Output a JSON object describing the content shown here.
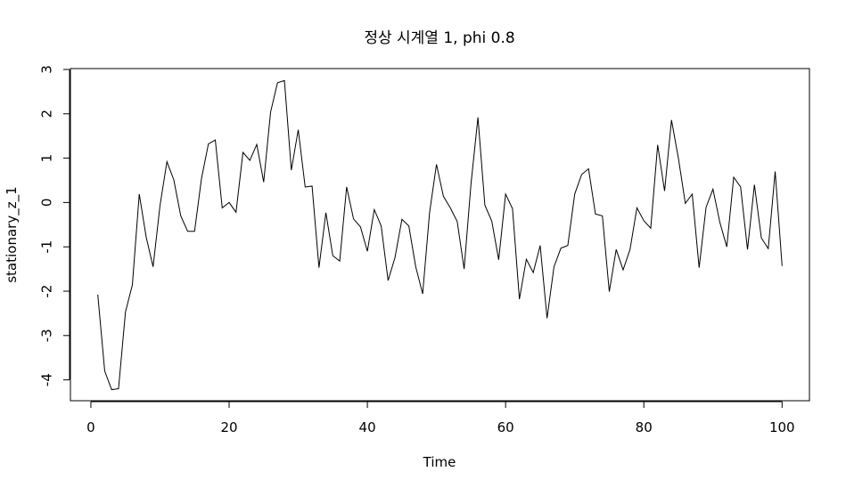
{
  "chart_data": {
    "type": "line",
    "title": "정상 시계열 1, phi 0.8",
    "xlabel": "Time",
    "ylabel": "stationary_z_1",
    "xlim": [
      -2.96,
      103.96
    ],
    "ylim": [
      -4.47,
      3.02
    ],
    "x_ticks": [
      0,
      20,
      40,
      60,
      80,
      100
    ],
    "y_ticks": [
      -4,
      -3,
      -2,
      -1,
      0,
      1,
      2,
      3
    ],
    "grid": false,
    "series": [
      {
        "x": [
          1,
          2,
          3,
          4,
          5,
          6,
          7,
          8,
          9,
          10,
          11,
          12,
          13,
          14,
          15,
          16,
          17,
          18,
          19,
          20,
          21,
          22,
          23,
          24,
          25,
          26,
          27,
          28,
          29,
          30,
          31,
          32,
          33,
          34,
          35,
          36,
          37,
          38,
          39,
          40,
          41,
          42,
          43,
          44,
          45,
          46,
          47,
          48,
          49,
          50,
          51,
          52,
          53,
          54,
          55,
          56,
          57,
          58,
          59,
          60,
          61,
          62,
          63,
          64,
          65,
          66,
          67,
          68,
          69,
          70,
          71,
          72,
          73,
          74,
          75,
          76,
          77,
          78,
          79,
          80,
          81,
          82,
          83,
          84,
          85,
          86,
          87,
          88,
          89,
          90,
          91,
          92,
          93,
          94,
          95,
          96,
          97,
          98,
          99,
          100
        ],
        "values": [
          -2.08,
          -3.8,
          -4.22,
          -4.2,
          -2.47,
          -1.86,
          0.19,
          -0.78,
          -1.45,
          -0.07,
          0.92,
          0.51,
          -0.3,
          -0.65,
          -0.65,
          0.54,
          1.32,
          1.41,
          -0.12,
          0.0,
          -0.22,
          1.13,
          0.95,
          1.31,
          0.46,
          2.04,
          2.7,
          2.75,
          0.73,
          1.64,
          0.35,
          0.37,
          -1.47,
          -0.23,
          -1.2,
          -1.32,
          0.35,
          -0.37,
          -0.55,
          -1.1,
          -0.16,
          -0.53,
          -1.76,
          -1.24,
          -0.38,
          -0.53,
          -1.45,
          -2.06,
          -0.23,
          0.86,
          0.14,
          -0.12,
          -0.43,
          -1.5,
          0.43,
          1.92,
          -0.06,
          -0.42,
          -1.29,
          0.19,
          -0.14,
          -2.18,
          -1.28,
          -1.58,
          -0.97,
          -2.61,
          -1.45,
          -1.03,
          -0.97,
          0.19,
          0.63,
          0.76,
          -0.26,
          -0.3,
          -2.01,
          -1.06,
          -1.52,
          -1.06,
          -0.12,
          -0.41,
          -0.58,
          1.3,
          0.26,
          1.86,
          1.0,
          -0.02,
          0.19,
          -1.47,
          -0.11,
          0.3,
          -0.45,
          -1.0,
          0.57,
          0.35,
          -1.06,
          0.4,
          -0.8,
          -1.04,
          0.7,
          -1.43
        ]
      }
    ]
  }
}
